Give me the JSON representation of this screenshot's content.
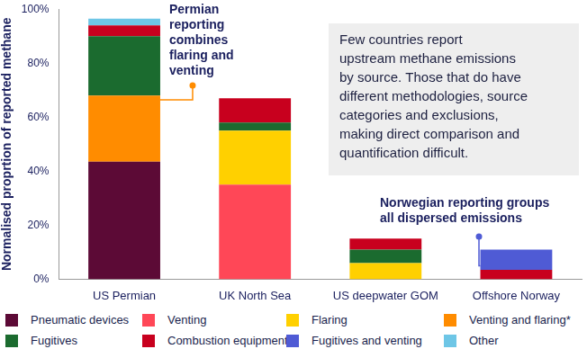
{
  "chart_data": {
    "type": "bar",
    "stacked": true,
    "grid": false,
    "legend": "bottom",
    "y_label": "Normalised proprtion of reported methane",
    "categories": [
      "US Permian",
      "UK North Sea",
      "US deepwater GOM",
      "Offshore Norway"
    ],
    "series": [
      {
        "name": "Pneumatic devices",
        "color": "#5c0a36",
        "values": [
          43.5,
          null,
          null,
          null
        ]
      },
      {
        "name": "Venting",
        "color": "#ff4757",
        "values": [
          null,
          35,
          null,
          null
        ]
      },
      {
        "name": "Flaring",
        "color": "#ffd000",
        "values": [
          null,
          20,
          6,
          null
        ]
      },
      {
        "name": "Venting and flaring*",
        "color": "#ff8c00",
        "values": [
          24.5,
          null,
          null,
          null
        ]
      },
      {
        "name": "Fugitives",
        "color": "#1b6b2f",
        "values": [
          22,
          3,
          5,
          null
        ]
      },
      {
        "name": "Combustion equipment",
        "color": "#c8001e",
        "values": [
          4,
          9,
          4,
          3.5
        ]
      },
      {
        "name": "Fugitives and venting",
        "color": "#4f5bd5",
        "values": [
          null,
          null,
          null,
          7.5
        ]
      },
      {
        "name": "Other",
        "color": "#6ec6e6",
        "values": [
          2.5,
          null,
          null,
          null
        ]
      }
    ],
    "ylim": [
      0,
      100
    ],
    "yticks": [
      {
        "value": 0,
        "label": "0%"
      },
      {
        "value": 20,
        "label": "20%"
      },
      {
        "value": 40,
        "label": "40%"
      },
      {
        "value": 60,
        "label": "60%"
      },
      {
        "value": 80,
        "label": "80%"
      },
      {
        "value": 100,
        "label": "100%"
      }
    ],
    "annotations": [
      {
        "text": [
          "Permian",
          "reporting",
          "combines",
          "flaring and",
          "venting"
        ]
      },
      {
        "text": [
          "Few countries report",
          "upstream methane emissions",
          "by source. Those that do have",
          "different methodologies, source",
          "categories and exclusions,",
          "making direct comparison and",
          "quantification difficult."
        ]
      },
      {
        "text": [
          "Norwegian reporting groups",
          "all dispersed emissions"
        ]
      }
    ]
  }
}
